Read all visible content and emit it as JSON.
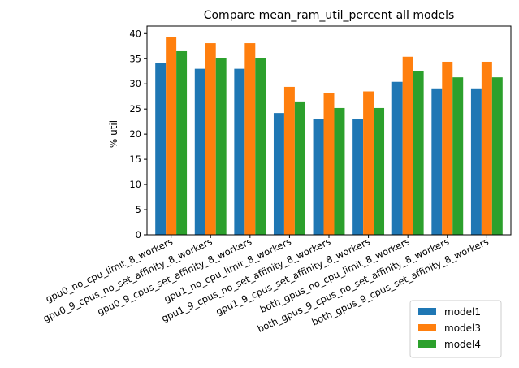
{
  "chart_data": {
    "type": "bar",
    "title": "Compare mean_ram_util_percent all models",
    "xlabel": "",
    "ylabel": "% util",
    "ylim": [
      0,
      41.5
    ],
    "yticks": [
      0,
      5,
      10,
      15,
      20,
      25,
      30,
      35,
      40
    ],
    "grid": false,
    "legend_position": "bottom-right",
    "categories": [
      "gpu0_no_cpu_limit_8_workers",
      "gpu0_9_cpus_no_set_affinity_8_workers",
      "gpu0_9_cpus_set_affinity_8_workers",
      "gpu1_no_cpu_limit_8_workers",
      "gpu1_9_cpus_no_set_affinity_8_workers",
      "gpu1_9_cpus_set_affinity_8_workers",
      "both_gpus_no_cpu_limit_8_workers",
      "both_gpus_9_cpus_no_set_affinity_8_workers",
      "both_gpus_9_cpus_set_affinity_8_workers"
    ],
    "series": [
      {
        "name": "model1",
        "color": "#1f77b4",
        "values": [
          34.2,
          33.0,
          33.0,
          24.2,
          23.0,
          23.0,
          30.4,
          29.1,
          29.1
        ]
      },
      {
        "name": "model3",
        "color": "#ff7f0e",
        "values": [
          39.4,
          38.1,
          38.1,
          29.4,
          28.1,
          28.5,
          35.4,
          34.4,
          34.4
        ]
      },
      {
        "name": "model4",
        "color": "#2ca02c",
        "values": [
          36.5,
          35.2,
          35.2,
          26.5,
          25.2,
          25.2,
          32.6,
          31.3,
          31.3
        ]
      }
    ]
  }
}
